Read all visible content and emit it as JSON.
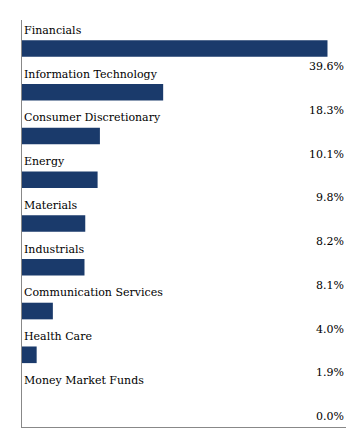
{
  "chart_data": {
    "type": "bar",
    "orientation": "horizontal",
    "categories": [
      "Financials",
      "Information Technology",
      "Consumer Discretionary",
      "Energy",
      "Materials",
      "Industrials",
      "Communication Services",
      "Health Care",
      "Money Market Funds"
    ],
    "values": [
      39.6,
      18.3,
      10.1,
      9.8,
      8.2,
      8.1,
      4.0,
      1.9,
      0.0
    ],
    "value_labels": [
      "39.6%",
      "18.3%",
      "10.1%",
      "9.8%",
      "8.2%",
      "8.1%",
      "4.0%",
      "1.9%",
      "0.0%"
    ],
    "color": "#1a3a6b",
    "xlim": [
      0,
      42
    ],
    "tick_labels": false,
    "grid": false,
    "data_labels": true
  }
}
